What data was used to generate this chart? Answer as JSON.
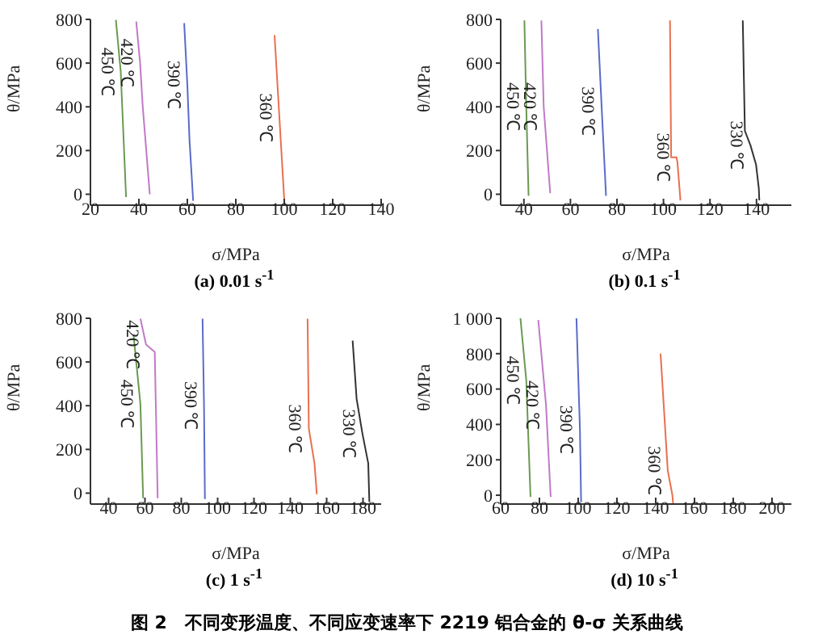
{
  "chart_data": [
    {
      "type": "line",
      "title": "(a) 0.01 s$^{-1}$",
      "xlabel": "σ/MPa",
      "ylabel": "θ/MPa",
      "xlim": [
        20,
        140
      ],
      "xticks": [
        20,
        40,
        60,
        80,
        100,
        120,
        140
      ],
      "ylim": [
        -50,
        800
      ],
      "yticks": [
        0,
        200,
        400,
        600,
        800
      ],
      "annotations": [
        "图 2　不同变形温度、不同应变速率下 2219 铝合金的 θ-σ 关系曲线"
      ],
      "series": [
        {
          "name": "450 ℃",
          "color": "#6a9a52",
          "x": [
            30.5,
            32.5,
            33.5,
            34.7
          ],
          "values": [
            798,
            560,
            300,
            -13
          ]
        },
        {
          "name": "420 ℃",
          "color": "#c07ac8",
          "x": [
            38.9,
            40.5,
            41.6,
            44.5
          ],
          "values": [
            790,
            600,
            399,
            0
          ]
        },
        {
          "name": "390 ℃",
          "color": "#5a6cc8",
          "x": [
            58.7,
            60,
            60.9,
            62.4
          ],
          "values": [
            783,
            500,
            246,
            -30
          ]
        },
        {
          "name": "360 ℃",
          "color": "#e8704f",
          "x": [
            96,
            98,
            100.1
          ],
          "values": [
            728,
            350,
            -44
          ]
        }
      ]
    },
    {
      "type": "line",
      "title": "(b) 0.1 s$^{-1}$",
      "xlabel": "σ/MPa",
      "ylabel": "θ/MPa",
      "xlim": [
        30,
        155
      ],
      "xticks": [
        40,
        60,
        80,
        100,
        120,
        140
      ],
      "ylim": [
        -50,
        800
      ],
      "yticks": [
        0,
        200,
        400,
        600,
        800
      ],
      "series": [
        {
          "name": "450 ℃",
          "color": "#6a9a52",
          "x": [
            40.2,
            41,
            42
          ],
          "values": [
            795,
            400,
            -7
          ]
        },
        {
          "name": "420 ℃",
          "color": "#c07ac8",
          "x": [
            47.5,
            48.5,
            51.3
          ],
          "values": [
            795,
            400,
            5
          ]
        },
        {
          "name": "390 ℃",
          "color": "#5a6cc8",
          "x": [
            71.8,
            73.5,
            75.3
          ],
          "values": [
            756,
            380,
            -7
          ]
        },
        {
          "name": "360 ℃",
          "color": "#e8704f",
          "x": [
            102.8,
            103.3,
            105.6,
            106,
            107.3
          ],
          "values": [
            795,
            169,
            169,
            147,
            -28
          ]
        },
        {
          "name": "330 ℃",
          "color": "#333333",
          "x": [
            134.1,
            135,
            137.4,
            139.8,
            141,
            141.2
          ],
          "values": [
            795,
            290,
            224,
            136,
            26,
            -28
          ]
        }
      ]
    },
    {
      "type": "line",
      "title": "(c) 1 s$^{-1}$",
      "xlabel": "σ/MPa",
      "ylabel": "θ/MPa",
      "xlim": [
        30,
        190
      ],
      "xticks": [
        40,
        60,
        80,
        100,
        120,
        140,
        160,
        180
      ],
      "ylim": [
        -50,
        800
      ],
      "yticks": [
        0,
        200,
        400,
        600,
        800
      ],
      "series": [
        {
          "name": "450 ℃",
          "color": "#6a9a52",
          "x": [
            53.7,
            57.5,
            59
          ],
          "values": [
            725,
            408,
            -23
          ]
        },
        {
          "name": "420 ℃",
          "color": "#c07ac8",
          "x": [
            57.5,
            60.6,
            65.4,
            67
          ],
          "values": [
            798,
            680,
            646,
            -23
          ]
        },
        {
          "name": "390 ℃",
          "color": "#5a6cc8",
          "x": [
            91.7,
            92.5,
            93
          ],
          "values": [
            798,
            400,
            -27
          ]
        },
        {
          "name": "360 ℃",
          "color": "#e8704f",
          "x": [
            149.5,
            150.2,
            153.3,
            154.6
          ],
          "values": [
            798,
            295,
            136,
            -5
          ]
        },
        {
          "name": "330 ℃",
          "color": "#333333",
          "x": [
            174.3,
            176.5,
            179.7,
            182.9,
            183.5
          ],
          "values": [
            698,
            431,
            272,
            136,
            -41
          ]
        }
      ]
    },
    {
      "type": "line",
      "title": "(d) 10 s$^{-1}$",
      "xlabel": "σ/MPa",
      "ylabel": "θ/MPa",
      "xlim": [
        60,
        210
      ],
      "xticks": [
        60,
        80,
        100,
        120,
        140,
        160,
        180,
        200
      ],
      "ylim": [
        -50,
        1000
      ],
      "yticks": [
        0,
        200,
        400,
        600,
        800,
        {
          "value": 1000,
          "label": "1 000"
        }
      ],
      "series": [
        {
          "name": "450 ℃",
          "color": "#6a9a52",
          "x": [
            70.2,
            73.2,
            75.4
          ],
          "values": [
            1000,
            650,
            -10
          ]
        },
        {
          "name": "420 ℃",
          "color": "#c07ac8",
          "x": [
            79.4,
            83.4,
            85.8
          ],
          "values": [
            990,
            510,
            -10
          ]
        },
        {
          "name": "390 ℃",
          "color": "#5a6cc8",
          "x": [
            99.1,
            100.9,
            101.5
          ],
          "values": [
            1000,
            370,
            -40
          ]
        },
        {
          "name": "360 ℃",
          "color": "#e8704f",
          "x": [
            142.5,
            146.2,
            148.6,
            149
          ],
          "values": [
            800,
            140,
            0,
            -50
          ]
        }
      ]
    }
  ]
}
